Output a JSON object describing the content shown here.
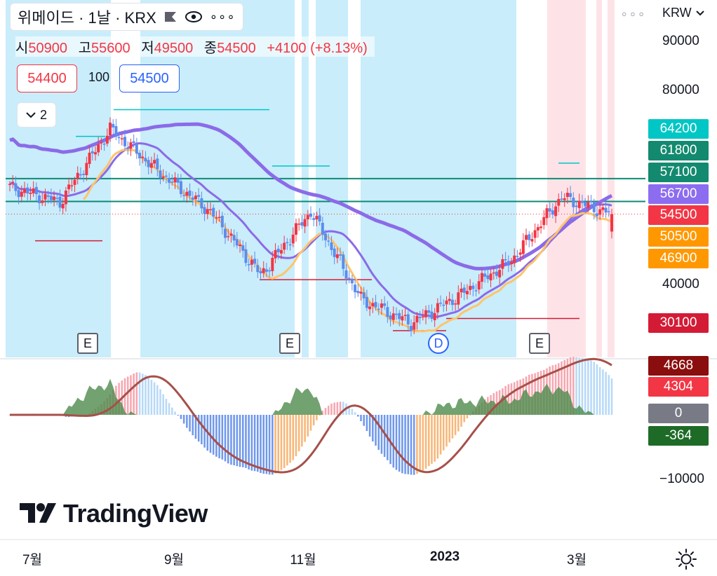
{
  "header": {
    "title": "위메이드 · 1날 · KRX",
    "currency": "KRW"
  },
  "ohlc": {
    "open_label": "시",
    "open": "50900",
    "high_label": "고",
    "high": "55600",
    "low_label": "저",
    "low": "49500",
    "close_label": "종",
    "close": "54500",
    "change": "+4100 (+8.13%)"
  },
  "order": {
    "sell": "54400",
    "quantity": "100",
    "buy": "54500"
  },
  "indicators_toggle": "2",
  "colors": {
    "up": "#f23645",
    "down": "#5b8def",
    "ma_purple": "#8b6be8",
    "ma_orange": "#ffc46b",
    "bg_blue": "#c3ebfb",
    "bg_pink": "#fde0e4",
    "level_green": "#0c8a76",
    "hist_green": "#4e8b4c",
    "osc_line": "#a6504a"
  },
  "price_axis": {
    "ticks": [
      "90000",
      "80000",
      "40000"
    ]
  },
  "price_tags": [
    {
      "value": "64200",
      "color": "#00c6c6"
    },
    {
      "value": "61800",
      "color": "#138a6f"
    },
    {
      "value": "57100",
      "color": "#138a6f"
    },
    {
      "value": "56700",
      "color": "#8c6df0"
    },
    {
      "value": "54500",
      "color": "#f23645"
    },
    {
      "value": "50500",
      "color": "#ff9800"
    },
    {
      "value": "46900",
      "color": "#ff9800"
    },
    {
      "value": "30100",
      "color": "#d41b36"
    }
  ],
  "osc_axis": {
    "ticks": [
      "-10000"
    ],
    "tags": [
      {
        "value": "4668",
        "color": "#8b0e0e"
      },
      {
        "value": "4304",
        "color": "#f23645"
      },
      {
        "value": "0",
        "color": "#787b86"
      },
      {
        "value": "-364",
        "color": "#1e6b28"
      }
    ]
  },
  "time_axis": [
    {
      "label": "7월",
      "bold": false
    },
    {
      "label": "9월",
      "bold": false
    },
    {
      "label": "11월",
      "bold": false
    },
    {
      "label": "2023",
      "bold": true
    },
    {
      "label": "3월",
      "bold": false
    }
  ],
  "events": [
    "E",
    "E",
    "D",
    "E"
  ],
  "branding": {
    "logo_text": "TradingView"
  },
  "chart_data": {
    "type": "candlestick",
    "period": "1날",
    "x_labels": [
      "7월",
      "9월",
      "11월",
      "2023",
      "3월"
    ],
    "y_range": [
      25000,
      98000
    ],
    "last": {
      "open": 50900,
      "high": 55600,
      "low": 49500,
      "close": 54500
    },
    "close_path": [
      {
        "month": "2022-06",
        "close": 60000
      },
      {
        "month": "2022-07",
        "close": 57000
      },
      {
        "month": "2022-08-early",
        "close": 72000
      },
      {
        "month": "2022-08-late",
        "close": 63000
      },
      {
        "month": "2022-09",
        "close": 55000
      },
      {
        "month": "2022-10-mid",
        "close": 42000
      },
      {
        "month": "2022-11",
        "close": 55000
      },
      {
        "month": "2022-12-early",
        "close": 37000
      },
      {
        "month": "2022-12-late",
        "close": 32000
      },
      {
        "month": "2023-01",
        "close": 38000
      },
      {
        "month": "2023-02-early",
        "close": 45000
      },
      {
        "month": "2023-02-late",
        "close": 58000
      },
      {
        "month": "2023-03",
        "close": 54500
      }
    ],
    "moving_averages": [
      {
        "name": "",
        "color": "#8b6be8",
        "last": 56700
      },
      {
        "name": "",
        "color": "#ffc46b",
        "last": 50500
      },
      {
        "name": "",
        "color": "#ffc46b",
        "last": 46900
      }
    ],
    "levels": [
      61800,
      57100
    ],
    "oscillator": {
      "zero": 0,
      "histogram_last": 4304,
      "signal_last": 4668,
      "secondary_last": -364,
      "min_label": -10000
    }
  }
}
